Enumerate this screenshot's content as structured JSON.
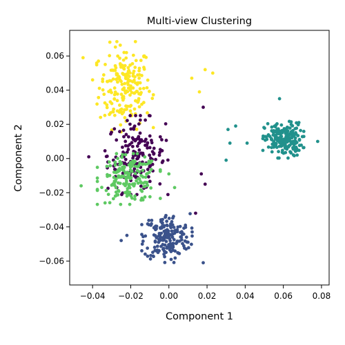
{
  "chart_data": {
    "type": "scatter",
    "title": "Multi-view Clustering",
    "xlabel": "Component 1",
    "ylabel": "Component 2",
    "xlim": [
      -0.052,
      0.084
    ],
    "ylim": [
      -0.074,
      0.075
    ],
    "xticks": [
      -0.04,
      -0.02,
      0.0,
      0.02,
      0.04,
      0.06,
      0.08
    ],
    "xtick_labels": [
      "−0.04",
      "−0.02",
      "0.00",
      "0.02",
      "0.04",
      "0.06",
      "0.08"
    ],
    "yticks": [
      -0.06,
      -0.04,
      -0.02,
      0.0,
      0.02,
      0.04,
      0.06
    ],
    "ytick_labels": [
      "−0.06",
      "−0.04",
      "−0.02",
      "0.00",
      "0.02",
      "0.04",
      "0.06"
    ],
    "grid": false,
    "series": [
      {
        "color": "#fde725",
        "center": [
          -0.023,
          0.042
        ],
        "spread": [
          0.009,
          0.016
        ],
        "count": 200,
        "outliers": [
          [
            -0.045,
            0.059
          ],
          [
            0.012,
            0.047
          ],
          [
            0.019,
            0.052
          ],
          [
            0.023,
            0.05
          ],
          [
            0.016,
            0.039
          ],
          [
            -0.04,
            0.046
          ]
        ]
      },
      {
        "color": "#440154",
        "center": [
          -0.017,
          0.002
        ],
        "spread": [
          0.01,
          0.014
        ],
        "count": 170,
        "outliers": [
          [
            0.018,
            0.03
          ],
          [
            0.017,
            -0.009
          ],
          [
            0.019,
            -0.015
          ],
          [
            0.014,
            -0.032
          ],
          [
            -0.042,
            0.001
          ]
        ]
      },
      {
        "color": "#5ec962",
        "center": [
          -0.021,
          -0.012
        ],
        "spread": [
          0.01,
          0.009
        ],
        "count": 170,
        "outliers": [
          [
            -0.046,
            -0.016
          ],
          [
            0.003,
            -0.017
          ],
          [
            0.0,
            -0.009
          ]
        ]
      },
      {
        "color": "#3b528b",
        "center": [
          -0.001,
          -0.046
        ],
        "spread": [
          0.008,
          0.009
        ],
        "count": 190,
        "outliers": [
          [
            -0.025,
            -0.048
          ],
          [
            -0.022,
            -0.045
          ],
          [
            0.018,
            -0.061
          ]
        ]
      },
      {
        "color": "#21918c",
        "center": [
          0.06,
          0.011
        ],
        "spread": [
          0.0065,
          0.0065
        ],
        "count": 210,
        "outliers": [
          [
            0.031,
            0.017
          ],
          [
            0.03,
            -0.001
          ],
          [
            0.035,
            0.019
          ],
          [
            0.041,
            0.009
          ],
          [
            0.058,
            0.035
          ],
          [
            0.078,
            0.01
          ],
          [
            0.032,
            0.009
          ]
        ]
      }
    ]
  }
}
